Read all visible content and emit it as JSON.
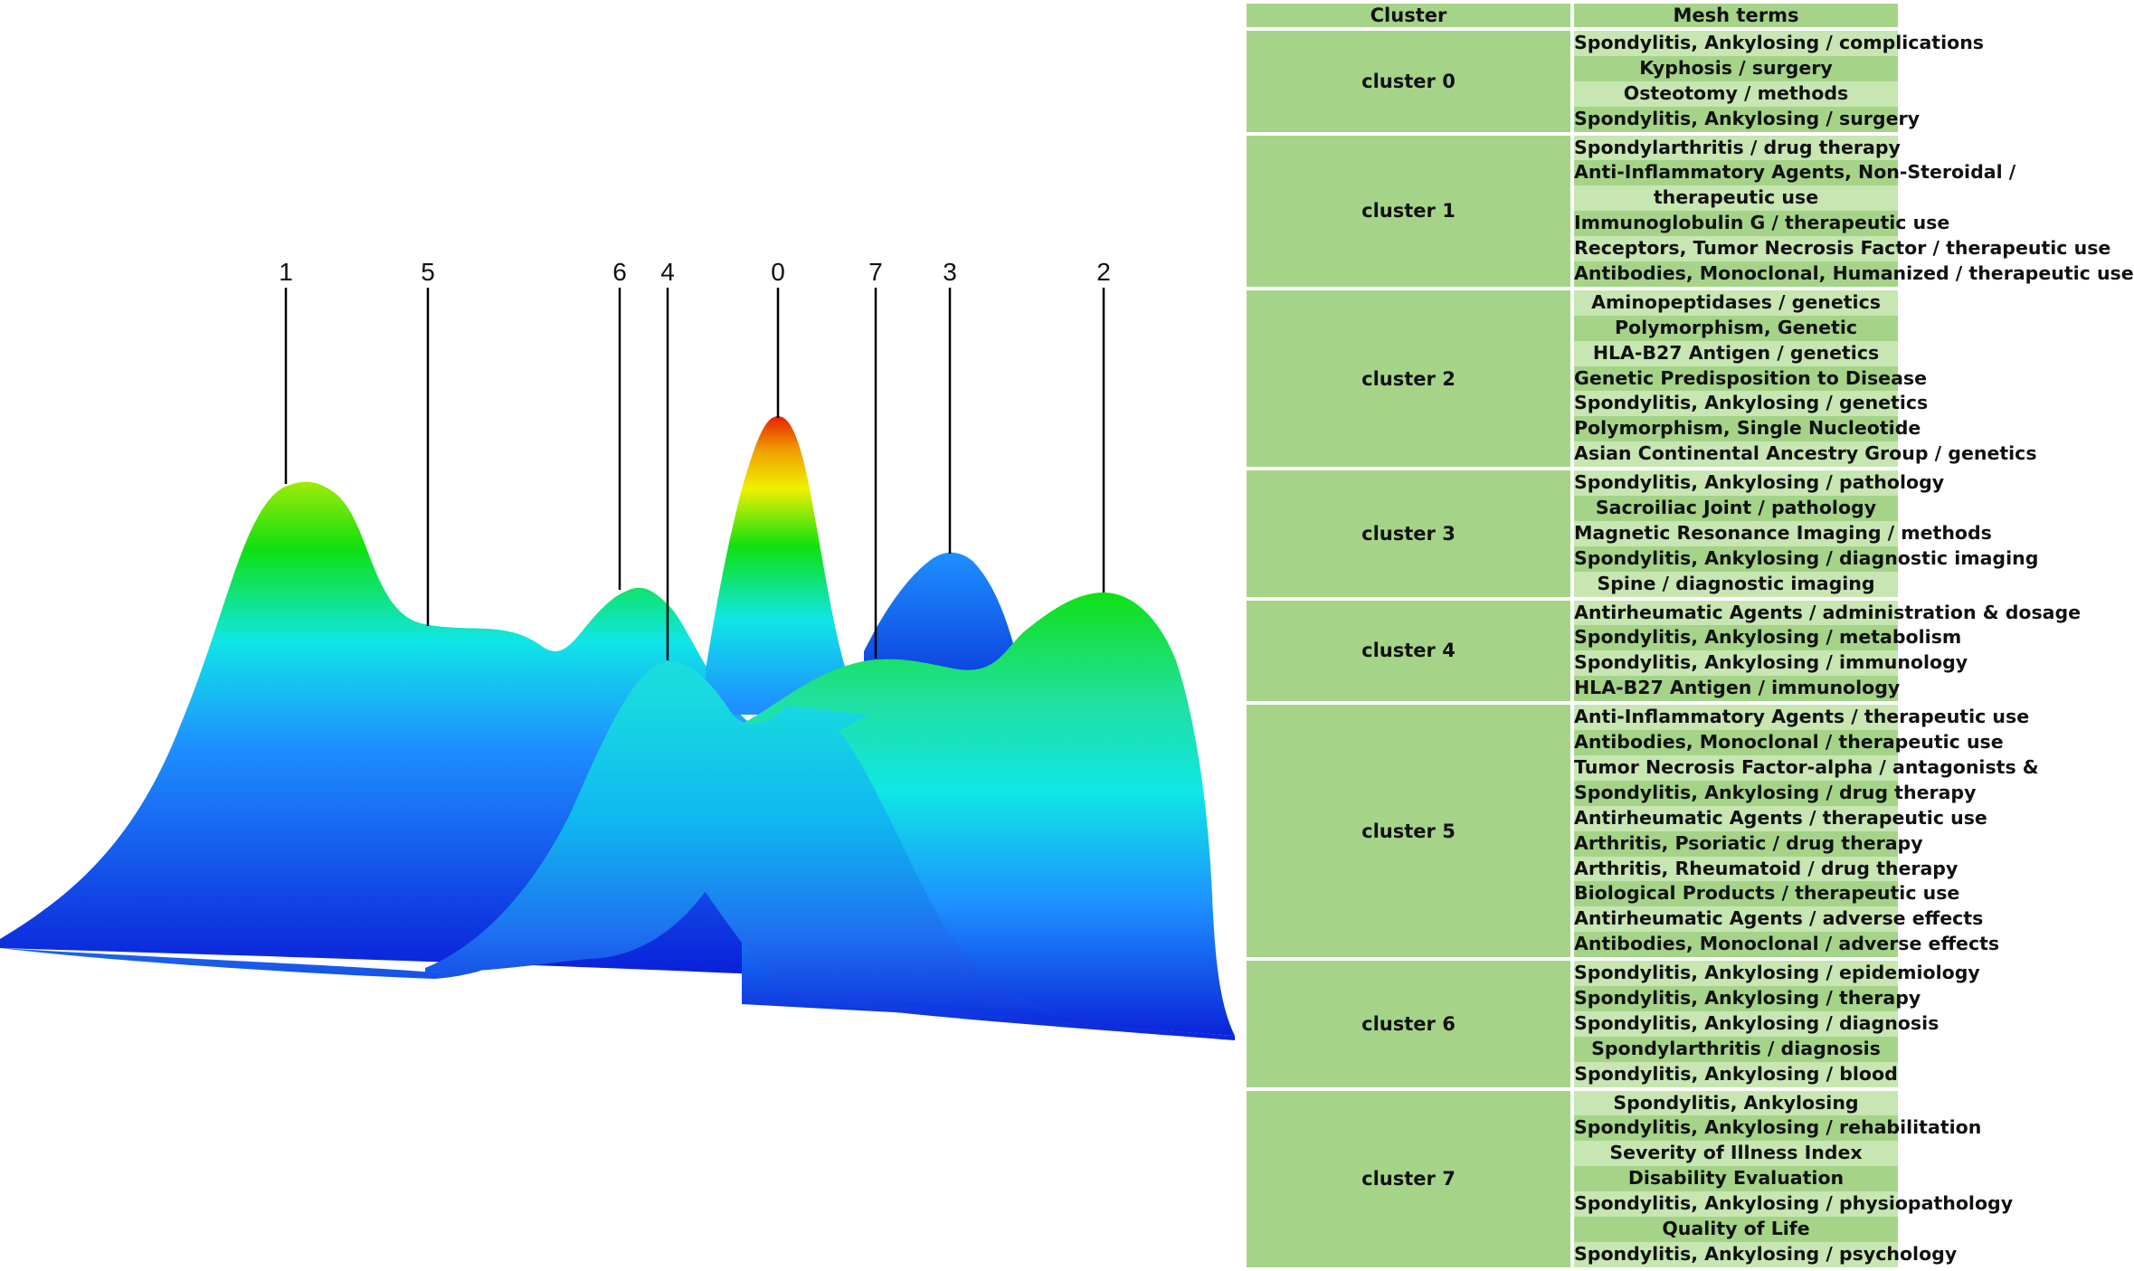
{
  "peaks": [
    {
      "label": "1",
      "cluster": 1,
      "height": 0.98
    },
    {
      "label": "5",
      "cluster": 5,
      "height": 0.66
    },
    {
      "label": "6",
      "cluster": 6,
      "height": 0.58
    },
    {
      "label": "4",
      "cluster": 4,
      "height": 0.46
    },
    {
      "label": "0",
      "cluster": 0,
      "height": 1.0
    },
    {
      "label": "7",
      "cluster": 7,
      "height": 0.5
    },
    {
      "label": "3",
      "cluster": 3,
      "height": 0.72
    },
    {
      "label": "2",
      "cluster": 2,
      "height": 0.88
    }
  ],
  "colors": {
    "low": "#0a1fd8",
    "mid_low": "#1e90ff",
    "mid": "#10e6e6",
    "mid_high": "#10e010",
    "high_yellow": "#f0f000",
    "peak": "#e82000",
    "table_header": "#a5d489",
    "table_row_light": "#c7e6b2",
    "table_row_dark": "#a5d489"
  },
  "table": {
    "header_cluster": "Cluster",
    "header_terms": "Mesh terms",
    "clusters": [
      {
        "name": "cluster 0",
        "terms": [
          "Spondylitis, Ankylosing / complications",
          "Kyphosis / surgery",
          "Osteotomy / methods",
          "Spondylitis, Ankylosing / surgery"
        ]
      },
      {
        "name": "cluster 1",
        "terms": [
          "Spondylarthritis / drug therapy",
          "Anti-Inflammatory Agents, Non-Steroidal /",
          "therapeutic use",
          "Immunoglobulin G / therapeutic use",
          "Receptors, Tumor Necrosis Factor / therapeutic use",
          "Antibodies, Monoclonal, Humanized / therapeutic use"
        ]
      },
      {
        "name": "cluster 2",
        "terms": [
          "Aminopeptidases / genetics",
          "Polymorphism, Genetic",
          "HLA-B27 Antigen / genetics",
          "Genetic Predisposition to Disease",
          "Spondylitis, Ankylosing / genetics",
          "Polymorphism, Single Nucleotide",
          "Asian Continental Ancestry Group / genetics"
        ]
      },
      {
        "name": "cluster 3",
        "terms": [
          "Spondylitis, Ankylosing / pathology",
          "Sacroiliac Joint / pathology",
          "Magnetic Resonance Imaging / methods",
          "Spondylitis, Ankylosing / diagnostic imaging",
          "Spine / diagnostic imaging"
        ]
      },
      {
        "name": "cluster 4",
        "terms": [
          "Antirheumatic Agents / administration & dosage",
          "Spondylitis, Ankylosing / metabolism",
          "Spondylitis, Ankylosing / immunology",
          "HLA-B27 Antigen / immunology"
        ]
      },
      {
        "name": "cluster 5",
        "terms": [
          "Anti-Inflammatory Agents / therapeutic use",
          "Antibodies, Monoclonal / therapeutic use",
          "Tumor Necrosis Factor-alpha / antagonists &",
          "Spondylitis, Ankylosing / drug therapy",
          "Antirheumatic Agents / therapeutic use",
          "Arthritis, Psoriatic / drug therapy",
          "Arthritis, Rheumatoid / drug therapy",
          "Biological Products / therapeutic use",
          "Antirheumatic Agents / adverse effects",
          "Antibodies, Monoclonal / adverse effects"
        ]
      },
      {
        "name": "cluster 6",
        "terms": [
          "Spondylitis, Ankylosing / epidemiology",
          "Spondylitis, Ankylosing / therapy",
          "Spondylitis, Ankylosing / diagnosis",
          "Spondylarthritis / diagnosis",
          "Spondylitis, Ankylosing / blood"
        ]
      },
      {
        "name": "cluster 7",
        "terms": [
          "Spondylitis, Ankylosing",
          "Spondylitis, Ankylosing / rehabilitation",
          "Severity of Illness Index",
          "Disability Evaluation",
          "Spondylitis, Ankylosing / physiopathology",
          "Quality of Life",
          "Spondylitis, Ankylosing / psychology"
        ]
      }
    ]
  }
}
